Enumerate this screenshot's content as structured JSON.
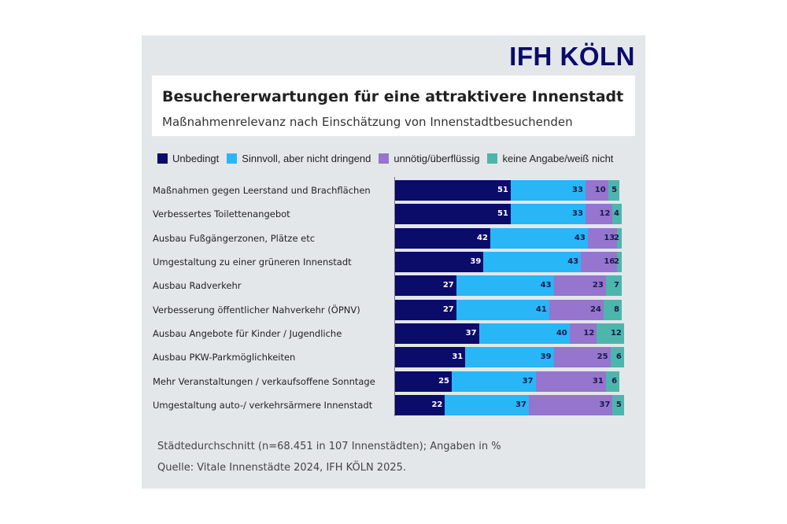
{
  "logo": "IFH KÖLN",
  "colors": {
    "unbedingt": "#0b0b6a",
    "sinnvoll": "#29b6f6",
    "unnoetig": "#9575cd",
    "keine": "#4db6ac",
    "background": "#e4e7ea"
  },
  "chart_data": {
    "type": "bar",
    "orientation": "horizontal-stacked",
    "title": "Besuchererwartungen für eine attraktivere Innenstadt",
    "subtitle": "Maßnahmenrelevanz nach Einschätzung von Innenstadtbesuchenden",
    "legend_position": "top",
    "grid": false,
    "xlim": [
      0,
      100
    ],
    "categories": [
      "Maßnahmen gegen Leerstand und Brachflächen",
      "Verbessertes Toilettenangebot",
      "Ausbau Fußgängerzonen, Plätze etc",
      "Umgestaltung zu einer grüneren Innenstadt",
      "Ausbau Radverkehr",
      "Verbesserung öffentlicher Nahverkehr (ÖPNV)",
      "Ausbau Angebote für Kinder / Jugendliche",
      "Ausbau PKW-Parkmöglichkeiten",
      "Mehr Veranstaltungen / verkaufsoffene Sonntage",
      "Umgestaltung auto-/ verkehrsärmere Innenstadt"
    ],
    "series": [
      {
        "name": "Unbedingt",
        "color": "#0b0b6a",
        "label_color": "#ffffff",
        "values": [
          51,
          51,
          42,
          39,
          27,
          27,
          37,
          31,
          25,
          22
        ]
      },
      {
        "name": "Sinnvoll, aber nicht dringend",
        "color": "#29b6f6",
        "label_color": "#1a1a4a",
        "values": [
          33,
          33,
          43,
          43,
          43,
          41,
          40,
          39,
          37,
          37
        ]
      },
      {
        "name": "unnötig/überflüssig",
        "color": "#9575cd",
        "label_color": "#1a1a4a",
        "values": [
          10,
          12,
          13,
          16,
          23,
          24,
          12,
          25,
          31,
          37
        ]
      },
      {
        "name": "keine Angabe/weiß nicht",
        "color": "#4db6ac",
        "label_color": "#1a1a4a",
        "values": [
          5,
          4,
          2,
          2,
          7,
          8,
          12,
          6,
          6,
          5
        ]
      }
    ]
  },
  "footnotes": [
    "Städtedurchschnitt (n=68.451 in 107 Innenstädten); Angaben in %",
    "Quelle: Vitale Innenstädte 2024, IFH KÖLN 2025."
  ]
}
